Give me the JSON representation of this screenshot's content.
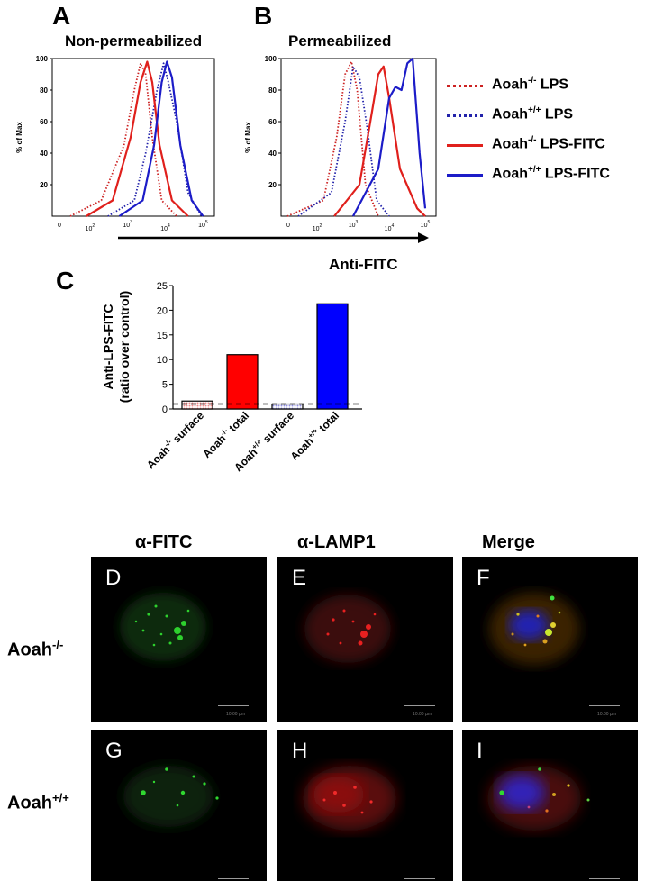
{
  "panels": {
    "A": {
      "letter": "A",
      "title": "Non-permeabilized"
    },
    "B": {
      "letter": "B",
      "title": "Permeabilized"
    },
    "C": {
      "letter": "C"
    }
  },
  "histogram": {
    "ylabel": "% of Max",
    "y_ticks": [
      "100",
      "80",
      "60",
      "40",
      "20"
    ],
    "x_ticks": [
      "0",
      "10",
      "10",
      "10",
      "10"
    ],
    "x_tick_exponents": [
      "",
      "2",
      "3",
      "4",
      "5"
    ],
    "shared_xlabel": "Anti-FITC"
  },
  "legend": [
    {
      "base": "Aoah",
      "sup": "-/-",
      "rest": " LPS",
      "color": "#cc2222",
      "style": "dotted"
    },
    {
      "base": "Aoah",
      "sup": "+/+",
      "rest": " LPS",
      "color": "#2222aa",
      "style": "dotted"
    },
    {
      "base": "Aoah",
      "sup": "-/-",
      "rest": " LPS-FITC",
      "color": "#e0201c",
      "style": "solid"
    },
    {
      "base": "Aoah",
      "sup": "+/+",
      "rest": " LPS-FITC",
      "color": "#1c1cc8",
      "style": "solid"
    }
  ],
  "chart_data": [
    {
      "type": "line",
      "panel": "A",
      "title": "Non-permeabilized",
      "ylabel": "% of Max",
      "xlabel": "Anti-FITC",
      "x_scale": "log",
      "ylim": [
        0,
        100
      ],
      "series": [
        {
          "name": "Aoah-/- LPS",
          "style": "dotted",
          "color": "#cc2222",
          "x": [
            30,
            200,
            800,
            1500,
            2200,
            3000,
            4500,
            8000,
            20000
          ],
          "y": [
            0,
            10,
            45,
            80,
            97,
            90,
            50,
            10,
            0
          ]
        },
        {
          "name": "Aoah+/+ LPS",
          "style": "dotted",
          "color": "#2222aa",
          "x": [
            300,
            1500,
            3000,
            6000,
            9000,
            12000,
            20000,
            40000,
            90000
          ],
          "y": [
            0,
            10,
            40,
            80,
            97,
            85,
            60,
            15,
            0
          ]
        },
        {
          "name": "Aoah-/- LPS-FITC",
          "style": "solid",
          "color": "#e0201c",
          "x": [
            80,
            400,
            1200,
            2200,
            3300,
            4500,
            7000,
            15000,
            40000
          ],
          "y": [
            0,
            10,
            50,
            85,
            98,
            85,
            45,
            10,
            0
          ]
        },
        {
          "name": "Aoah+/+ LPS-FITC",
          "style": "solid",
          "color": "#1c1cc8",
          "x": [
            600,
            2500,
            5000,
            8000,
            11000,
            15000,
            25000,
            50000,
            100000
          ],
          "y": [
            0,
            10,
            45,
            85,
            98,
            88,
            45,
            10,
            0
          ]
        }
      ]
    },
    {
      "type": "line",
      "panel": "B",
      "title": "Permeabilized",
      "ylabel": "% of Max",
      "xlabel": "Anti-FITC",
      "x_scale": "log",
      "ylim": [
        0,
        100
      ],
      "series": [
        {
          "name": "Aoah-/- LPS",
          "style": "dotted",
          "color": "#cc2222",
          "x": [
            15,
            150,
            350,
            600,
            900,
            1300,
            2200,
            5000
          ],
          "y": [
            0,
            10,
            50,
            90,
            98,
            80,
            20,
            0
          ]
        },
        {
          "name": "Aoah+/+ LPS",
          "style": "dotted",
          "color": "#2222aa",
          "x": [
            30,
            250,
            600,
            1000,
            1500,
            2500,
            4500,
            10000
          ],
          "y": [
            0,
            15,
            60,
            95,
            88,
            55,
            10,
            0
          ]
        },
        {
          "name": "Aoah-/- LPS-FITC",
          "style": "solid",
          "color": "#e0201c",
          "x": [
            300,
            1500,
            3000,
            5000,
            7000,
            10000,
            20000,
            60000,
            100000
          ],
          "y": [
            0,
            20,
            60,
            90,
            95,
            75,
            30,
            5,
            0
          ]
        },
        {
          "name": "Aoah+/+ LPS-FITC",
          "style": "solid",
          "color": "#1c1cc8",
          "x": [
            1000,
            5000,
            10000,
            15000,
            22000,
            32000,
            45000,
            70000,
            100000
          ],
          "y": [
            0,
            30,
            75,
            82,
            80,
            97,
            100,
            40,
            5
          ]
        }
      ]
    },
    {
      "type": "bar",
      "panel": "C",
      "ylabel": "Anti-LPS-FITC\n(ratio over control)",
      "ylim": [
        0,
        25
      ],
      "y_ticks": [
        0,
        5,
        10,
        15,
        20,
        25
      ],
      "reference_line": 1,
      "categories": [
        {
          "base": "Aoah",
          "sup": "-/-",
          "rest": " surface"
        },
        {
          "base": "Aoah",
          "sup": "-/-",
          "rest": "  total"
        },
        {
          "base": "Aoah",
          "sup": "+/+",
          "rest": " surface"
        },
        {
          "base": "Aoah",
          "sup": "+/+",
          "rest": " total"
        }
      ],
      "values": [
        1.6,
        11.0,
        1.0,
        21.3
      ],
      "colors": [
        "#f08a8a",
        "#ff0000",
        "#9090e0",
        "#0000ff"
      ],
      "patterns": [
        "dotted",
        "solid",
        "dotted",
        "solid"
      ]
    }
  ],
  "panel_c": {
    "ylabel_line1": "Anti-LPS-FITC",
    "ylabel_line2": "(ratio over control)"
  },
  "microscopy": {
    "columns": [
      "α-FITC",
      "α-LAMP1",
      "Merge"
    ],
    "rows": [
      {
        "base": "Aoah",
        "sup": "-/-"
      },
      {
        "base": "Aoah",
        "sup": "+/+"
      }
    ],
    "panel_letters": [
      "D",
      "E",
      "F",
      "G",
      "H",
      "I"
    ],
    "scale_bar_text": "10.00 µm"
  }
}
